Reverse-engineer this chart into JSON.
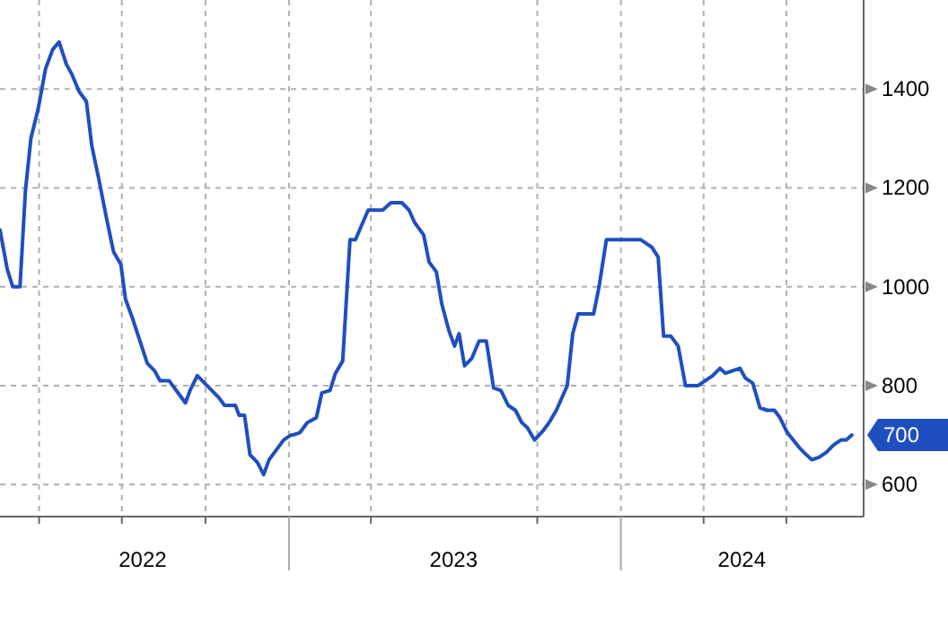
{
  "chart_data": {
    "type": "line",
    "grid": true,
    "marker": "none",
    "line_style": "solid",
    "xlim": [
      "2022-02-17",
      "2024-09-24"
    ],
    "ylim": [
      535,
      1580
    ],
    "yticks": [
      600,
      800,
      1000,
      1200,
      1400
    ],
    "xticks": [
      {
        "value": "2022-04-01",
        "label": null
      },
      {
        "value": "2022-07-01",
        "label": null
      },
      {
        "value": "2022-07-24",
        "label": "2022"
      },
      {
        "value": "2022-10-01",
        "label": null
      },
      {
        "value": "2023-01-01",
        "label": null
      },
      {
        "value": "2023-04-01",
        "label": null
      },
      {
        "value": "2023-07-01",
        "label": "2023"
      },
      {
        "value": "2023-10-01",
        "label": null
      },
      {
        "value": "2024-01-01",
        "label": null
      },
      {
        "value": "2024-04-01",
        "label": null
      },
      {
        "value": "2024-05-13",
        "label": "2024"
      },
      {
        "value": "2024-07-01",
        "label": null
      }
    ],
    "series": [
      {
        "color": "#1f4fbf",
        "x": [
          "2022-02-17",
          "2022-02-25",
          "2022-03-03",
          "2022-03-11",
          "2022-03-17",
          "2022-03-23",
          "2022-03-31",
          "2022-04-08",
          "2022-04-16",
          "2022-04-23",
          "2022-05-01",
          "2022-05-07",
          "2022-05-15",
          "2022-05-23",
          "2022-05-29",
          "2022-06-06",
          "2022-06-14",
          "2022-06-22",
          "2022-06-30",
          "2022-07-05",
          "2022-07-13",
          "2022-07-21",
          "2022-07-29",
          "2022-08-06",
          "2022-08-12",
          "2022-08-22",
          "2022-08-30",
          "2022-09-09",
          "2022-09-14",
          "2022-09-22",
          "2022-09-30",
          "2022-10-08",
          "2022-10-16",
          "2022-10-22",
          "2022-11-03",
          "2022-11-07",
          "2022-11-13",
          "2022-11-19",
          "2022-11-27",
          "2022-12-04",
          "2022-12-10",
          "2022-12-18",
          "2022-12-26",
          "2023-01-03",
          "2023-01-05",
          "2023-01-13",
          "2023-01-21",
          "2023-01-31",
          "2023-02-06",
          "2023-02-15",
          "2023-02-21",
          "2023-03-01",
          "2023-03-09",
          "2023-03-15",
          "2023-03-29",
          "2023-04-14",
          "2023-04-23",
          "2023-05-05",
          "2023-05-13",
          "2023-05-19",
          "2023-05-29",
          "2023-06-04",
          "2023-06-12",
          "2023-06-18",
          "2023-06-26",
          "2023-07-02",
          "2023-07-07",
          "2023-07-13",
          "2023-07-21",
          "2023-07-29",
          "2023-08-06",
          "2023-08-14",
          "2023-08-22",
          "2023-08-30",
          "2023-09-07",
          "2023-09-14",
          "2023-09-20",
          "2023-09-28",
          "2023-10-08",
          "2023-10-14",
          "2023-10-22",
          "2023-10-28",
          "2023-11-03",
          "2023-11-09",
          "2023-11-15",
          "2023-12-02",
          "2023-12-08",
          "2023-12-16",
          "2024-01-23",
          "2024-02-04",
          "2024-02-11",
          "2024-02-17",
          "2024-02-25",
          "2024-03-04",
          "2024-03-12",
          "2024-03-26",
          "2024-04-03",
          "2024-04-11",
          "2024-04-19",
          "2024-04-25",
          "2024-05-03",
          "2024-05-11",
          "2024-05-17",
          "2024-05-25",
          "2024-06-02",
          "2024-06-10",
          "2024-06-18",
          "2024-06-24",
          "2024-07-02",
          "2024-07-15",
          "2024-07-23",
          "2024-07-29",
          "2024-08-06",
          "2024-08-14",
          "2024-08-22",
          "2024-08-30",
          "2024-09-05",
          "2024-09-11"
        ],
        "values": [
          1115,
          1035,
          1000,
          1000,
          1195,
          1300,
          1360,
          1440,
          1480,
          1495,
          1450,
          1430,
          1395,
          1375,
          1285,
          1215,
          1140,
          1070,
          1045,
          975,
          935,
          890,
          845,
          830,
          810,
          810,
          790,
          765,
          790,
          820,
          805,
          790,
          775,
          760,
          760,
          740,
          740,
          660,
          645,
          620,
          650,
          670,
          690,
          700,
          700,
          705,
          725,
          735,
          785,
          790,
          825,
          850,
          1095,
          1095,
          1155,
          1155,
          1170,
          1170,
          1155,
          1130,
          1105,
          1050,
          1030,
          965,
          910,
          880,
          905,
          840,
          855,
          890,
          890,
          795,
          790,
          760,
          750,
          725,
          715,
          690,
          710,
          725,
          750,
          775,
          800,
          905,
          945,
          945,
          1000,
          1095,
          1095,
          1080,
          1060,
          900,
          900,
          880,
          800,
          800,
          810,
          820,
          835,
          825,
          830,
          835,
          815,
          805,
          755,
          750,
          750,
          735,
          705,
          675,
          660,
          650,
          655,
          665,
          680,
          690,
          690,
          700
        ],
        "value_labels": [
          null,
          null,
          null,
          null,
          null,
          null,
          null,
          null,
          null,
          null,
          null,
          null,
          null,
          null,
          null,
          null,
          null,
          null,
          null,
          null,
          null,
          null,
          null,
          null,
          null,
          null,
          null,
          null,
          null,
          null,
          null,
          null,
          null,
          null,
          null,
          null,
          null,
          null,
          null,
          null,
          null,
          null,
          null,
          null,
          null,
          null,
          null,
          null,
          null,
          null,
          null,
          null,
          null,
          null,
          null,
          null,
          null,
          null,
          null,
          null,
          null,
          null,
          null,
          null,
          null,
          null,
          null,
          null,
          null,
          null,
          null,
          null,
          null,
          null,
          null,
          null,
          null,
          null,
          null,
          null,
          null,
          null,
          null,
          null,
          null,
          null,
          null,
          null,
          null,
          null,
          null,
          null,
          null,
          null,
          null,
          null,
          null,
          null,
          null,
          null,
          null,
          null,
          null,
          null,
          null,
          null,
          null,
          null,
          null,
          null,
          null,
          null,
          null,
          null,
          null,
          null,
          null,
          "700"
        ]
      }
    ]
  }
}
